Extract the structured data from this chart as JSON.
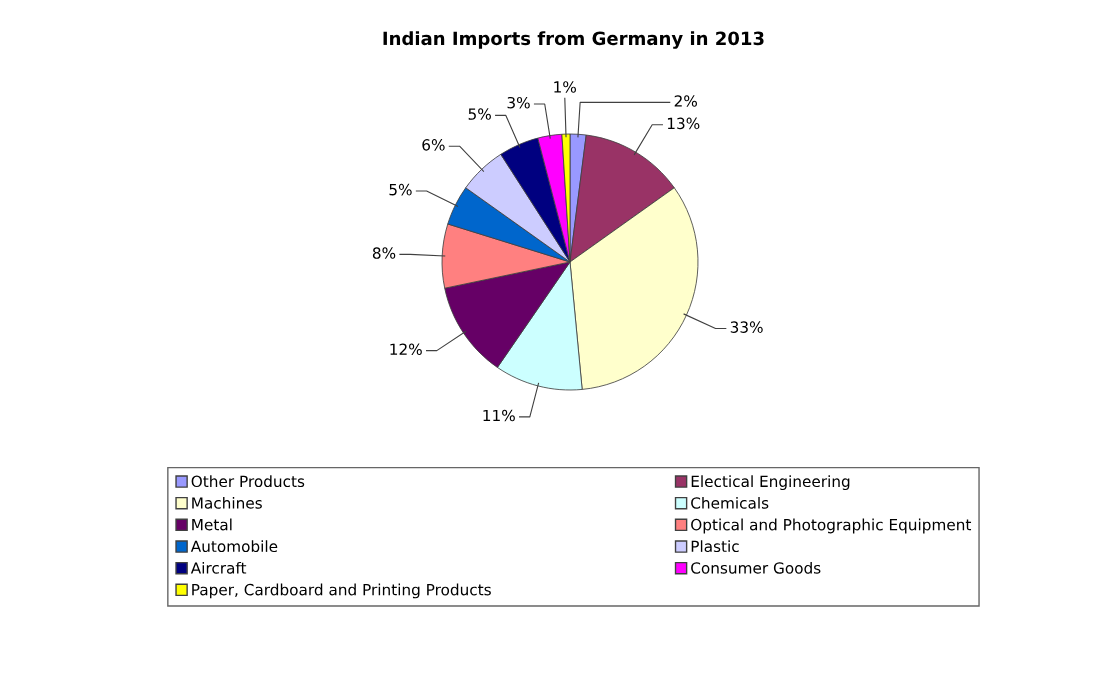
{
  "chart_data": {
    "type": "pie",
    "title": "Indian Imports from Germany in 2013",
    "categories": [
      "Other Products",
      "Electical Engineering",
      "Machines",
      "Chemicals",
      "Metal",
      "Optical and Photographic Equipment",
      "Automobile",
      "Plastic",
      "Aircraft",
      "Consumer Goods",
      "Paper, Cardboard and Printing Products"
    ],
    "values": [
      2,
      13,
      33,
      11,
      12,
      8,
      5,
      6,
      5,
      3,
      1
    ],
    "value_labels": [
      "2%",
      "13%",
      "33%",
      "11%",
      "12%",
      "8%",
      "5%",
      "6%",
      "5%",
      "3%",
      "1%"
    ],
    "colors": [
      "#9999ff",
      "#993366",
      "#ffffcc",
      "#ccffff",
      "#660066",
      "#ff8080",
      "#0066cc",
      "#ccccff",
      "#000080",
      "#ff00ff",
      "#ffff00"
    ],
    "legend": "bottom"
  }
}
